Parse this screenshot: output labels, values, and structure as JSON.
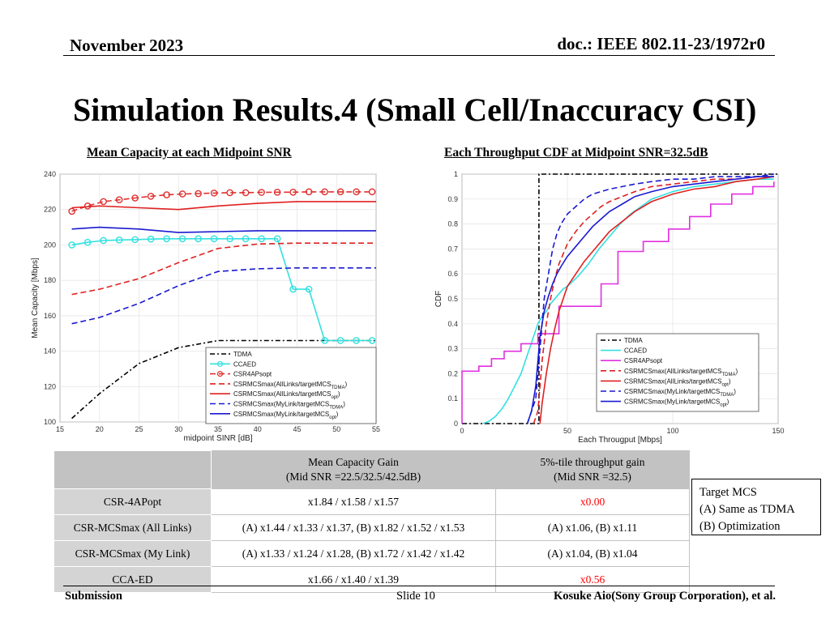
{
  "header": {
    "date": "November 2023",
    "doc": "doc.: IEEE 802.11-23/1972r0"
  },
  "title": "Simulation Results.4 (Small Cell/Inaccuracy CSI)",
  "left_subtitle": "Mean Capacity at each Midpoint SNR",
  "right_subtitle": "Each Throughput CDF at Midpoint SNR=32.5dB",
  "colors": {
    "tdma": "#000000",
    "ccaed": "#33e0e0",
    "csr4": "#e03030",
    "red": "#e02020",
    "blue": "#1a1ad0",
    "magenta": "#e030e0"
  },
  "chart_data": [
    {
      "type": "line",
      "title": "",
      "xlabel": "midpoint SINR [dB]",
      "ylabel": "Mean Capacity [Mbps]",
      "xlim": [
        15,
        55
      ],
      "ylim": [
        100,
        240
      ],
      "xticks": [
        "15",
        "20",
        "25",
        "30",
        "35",
        "40",
        "45",
        "50",
        "55"
      ],
      "yticks": [
        "100",
        "120",
        "140",
        "160",
        "180",
        "200",
        "220",
        "240"
      ],
      "legend_position": "bottom-right",
      "series": [
        {
          "name": "TDMA",
          "style": "dashdot",
          "color": "#000000",
          "x": [
            16.5,
            20,
            25,
            30,
            35,
            40,
            45,
            50,
            55
          ],
          "values": [
            102,
            116,
            133,
            142,
            146,
            146,
            146,
            146,
            146
          ]
        },
        {
          "name": "CCAED",
          "style": "solid-circle",
          "color": "#33e0e0",
          "x": [
            16.5,
            18.5,
            20.5,
            22.5,
            24.5,
            26.5,
            28.5,
            30.5,
            32.5,
            34.5,
            36.5,
            38.5,
            40.5,
            42.5,
            44.5,
            46.5,
            48.5,
            50.5,
            52.5,
            54.5
          ],
          "values": [
            200,
            201.5,
            202.5,
            202.8,
            203,
            203.3,
            203.5,
            203.5,
            203.5,
            203.5,
            203.5,
            203.5,
            203.5,
            203.5,
            175,
            175,
            146,
            146,
            146,
            146
          ]
        },
        {
          "name": "CSR4APsopt",
          "style": "dashed-circle",
          "color": "#e03030",
          "x": [
            16.5,
            18.5,
            20.5,
            22.5,
            24.5,
            26.5,
            28.5,
            30.5,
            32.5,
            34.5,
            36.5,
            38.5,
            40.5,
            42.5,
            44.5,
            46.5,
            48.5,
            50.5,
            52.5,
            54.5
          ],
          "values": [
            219,
            222,
            224.5,
            225.5,
            226.5,
            227.5,
            228.3,
            228.8,
            229,
            229.3,
            229.5,
            229.5,
            229.7,
            229.8,
            229.8,
            230,
            230,
            230,
            230,
            230
          ]
        },
        {
          "name": "CSRMCSmax(AllLinks/targetMCS_TDMA)",
          "style": "dashed",
          "color": "#e02020",
          "x": [
            16.5,
            20,
            25,
            30,
            35,
            40,
            45,
            50,
            55
          ],
          "values": [
            172,
            175,
            181,
            190,
            198,
            200.5,
            201,
            201,
            201
          ]
        },
        {
          "name": "CSRMCSmax(AllLinks/targetMCS_opt)",
          "style": "solid",
          "color": "#e02020",
          "x": [
            16.5,
            20,
            25,
            30,
            35,
            40,
            45,
            50,
            55
          ],
          "values": [
            221,
            222,
            221,
            220,
            222,
            223.5,
            224.5,
            224.5,
            224.5
          ]
        },
        {
          "name": "CSRMCSmax(MyLink/targetMCS_TDMA)",
          "style": "dashed",
          "color": "#1a1ad0",
          "x": [
            16.5,
            20,
            25,
            30,
            35,
            40,
            45,
            50,
            55
          ],
          "values": [
            155.5,
            159,
            167,
            177,
            185,
            186.5,
            187,
            187,
            187
          ]
        },
        {
          "name": "CSRMCSmax(MyLink/targetMCS_opt)",
          "style": "solid",
          "color": "#1a1ad0",
          "x": [
            16.5,
            20,
            25,
            30,
            35,
            40,
            45,
            50,
            55
          ],
          "values": [
            209,
            210,
            209,
            207,
            207.5,
            208,
            208,
            208,
            208
          ]
        }
      ],
      "legend": [
        {
          "label": "TDMA",
          "sub": ""
        },
        {
          "label": "CCAED",
          "sub": ""
        },
        {
          "label": "CSR4APsopt",
          "sub": ""
        },
        {
          "label": "CSRMCSmax(AllLinks/targetMCS",
          "sub": "TDMA",
          "tail": ")"
        },
        {
          "label": "CSRMCSmax(AllLinks/targetMCS",
          "sub": "opt",
          "tail": ")"
        },
        {
          "label": "CSRMCSmax(MyLink/targetMCS",
          "sub": "TDMA",
          "tail": ")"
        },
        {
          "label": "CSRMCSmax(MyLink/targetMCS",
          "sub": "opt",
          "tail": ")"
        }
      ]
    },
    {
      "type": "line",
      "title": "",
      "xlabel": "Each Througput [Mbps]",
      "ylabel": "CDF",
      "xlim": [
        0,
        150
      ],
      "ylim": [
        0,
        1
      ],
      "xticks": [
        "0",
        "50",
        "100",
        "150"
      ],
      "yticks": [
        "0",
        "0.1",
        "0.2",
        "0.3",
        "0.4",
        "0.5",
        "0.6",
        "0.7",
        "0.8",
        "0.9",
        "1"
      ],
      "legend_position": "bottom-right",
      "series": [
        {
          "name": "TDMA",
          "style": "dashdot",
          "color": "#000000",
          "x": [
            0,
            36.5,
            36.5,
            150
          ],
          "values": [
            0,
            0,
            1,
            1
          ]
        },
        {
          "name": "CCAED",
          "style": "solid",
          "color": "#33e0e0",
          "x": [
            10,
            13,
            16,
            19,
            22,
            25,
            28,
            30,
            32,
            34,
            36,
            38,
            40,
            42,
            44,
            46,
            48,
            50,
            55,
            60,
            65,
            70,
            75,
            80,
            85,
            90,
            100,
            110,
            120,
            130,
            140,
            148
          ],
          "values": [
            0,
            0.01,
            0.03,
            0.06,
            0.1,
            0.15,
            0.2,
            0.25,
            0.3,
            0.35,
            0.4,
            0.43,
            0.45,
            0.48,
            0.5,
            0.52,
            0.54,
            0.55,
            0.59,
            0.64,
            0.7,
            0.75,
            0.8,
            0.84,
            0.87,
            0.9,
            0.93,
            0.95,
            0.96,
            0.97,
            0.98,
            0.98
          ]
        },
        {
          "name": "CSR4APsopt",
          "style": "step",
          "color": "#e030e0",
          "x": [
            0,
            0,
            8,
            8,
            14,
            14,
            20,
            20,
            28,
            28,
            36,
            36,
            46,
            46,
            66,
            66,
            74,
            74,
            86,
            86,
            98,
            98,
            108,
            108,
            118,
            118,
            128,
            128,
            138,
            138,
            148,
            148
          ],
          "values": [
            0,
            0.21,
            0.21,
            0.23,
            0.23,
            0.26,
            0.26,
            0.29,
            0.29,
            0.32,
            0.32,
            0.36,
            0.36,
            0.47,
            0.47,
            0.56,
            0.56,
            0.69,
            0.69,
            0.73,
            0.73,
            0.78,
            0.78,
            0.83,
            0.83,
            0.88,
            0.88,
            0.92,
            0.92,
            0.95,
            0.95,
            0.97
          ]
        },
        {
          "name": "CSRMCSmax(AllLinks/targetMCS_TDMA)",
          "style": "dashed",
          "color": "#e02020",
          "x": [
            34,
            36,
            38,
            40,
            42,
            44,
            46,
            48,
            50,
            54,
            58,
            62,
            66,
            70,
            76,
            82,
            90,
            100,
            110,
            120,
            130,
            140,
            148
          ],
          "values": [
            0,
            0.05,
            0.25,
            0.4,
            0.5,
            0.58,
            0.64,
            0.68,
            0.72,
            0.77,
            0.81,
            0.84,
            0.87,
            0.89,
            0.91,
            0.93,
            0.95,
            0.96,
            0.97,
            0.98,
            0.98,
            0.99,
            0.99
          ]
        },
        {
          "name": "CSRMCSmax(AllLinks/targetMCS_opt)",
          "style": "solid",
          "color": "#e02020",
          "x": [
            37,
            38,
            40,
            42,
            44,
            46,
            48,
            50,
            54,
            58,
            62,
            66,
            70,
            76,
            82,
            90,
            100,
            110,
            120,
            130,
            140,
            148
          ],
          "values": [
            0,
            0.08,
            0.2,
            0.3,
            0.38,
            0.45,
            0.5,
            0.55,
            0.6,
            0.65,
            0.69,
            0.73,
            0.77,
            0.81,
            0.85,
            0.89,
            0.92,
            0.94,
            0.95,
            0.97,
            0.98,
            0.99
          ]
        },
        {
          "name": "CSRMCSmax(MyLink/targetMCS_TDMA)",
          "style": "dashed",
          "color": "#1a1ad0",
          "x": [
            31,
            33,
            35,
            37,
            39,
            41,
            43,
            45,
            47,
            50,
            54,
            58,
            62,
            66,
            70,
            76,
            82,
            90,
            100,
            110,
            120,
            130,
            140,
            148
          ],
          "values": [
            0,
            0.05,
            0.1,
            0.3,
            0.5,
            0.6,
            0.7,
            0.76,
            0.8,
            0.84,
            0.87,
            0.9,
            0.92,
            0.93,
            0.94,
            0.95,
            0.96,
            0.97,
            0.98,
            0.98,
            0.99,
            0.99,
            0.99,
            1
          ]
        },
        {
          "name": "CSRMCSmax(MyLink/targetMCS_opt)",
          "style": "solid",
          "color": "#1a1ad0",
          "x": [
            31,
            33,
            35,
            37,
            39,
            41,
            43,
            45,
            47,
            50,
            54,
            58,
            62,
            66,
            70,
            76,
            82,
            90,
            100,
            110,
            120,
            130,
            140,
            148
          ],
          "values": [
            0,
            0.05,
            0.15,
            0.35,
            0.45,
            0.51,
            0.56,
            0.6,
            0.63,
            0.67,
            0.71,
            0.75,
            0.79,
            0.82,
            0.85,
            0.88,
            0.91,
            0.93,
            0.95,
            0.96,
            0.97,
            0.98,
            0.99,
            0.99
          ]
        }
      ],
      "legend": [
        {
          "label": "TDMA",
          "sub": ""
        },
        {
          "label": "CCAED",
          "sub": ""
        },
        {
          "label": "CSR4APsopt",
          "sub": ""
        },
        {
          "label": "CSRMCSmax(AllLinks/targetMCS",
          "sub": "TDMA",
          "tail": ")"
        },
        {
          "label": "CSRMCSmax(AllLinks/targetMCS",
          "sub": "opt",
          "tail": ")"
        },
        {
          "label": "CSRMCSmax(MyLink/targetMCS",
          "sub": "TDMA",
          "tail": ")"
        },
        {
          "label": "CSRMCSmax(MyLink/targetMCS",
          "sub": "opt",
          "tail": ")"
        }
      ]
    },
    {
      "type": "table",
      "headers": [
        "",
        "Mean Capacity Gain",
        "5%-tile throughput gain"
      ],
      "headers_line2": [
        "",
        "(Mid SNR =22.5/32.5/42.5dB)",
        "(Mid SNR =32.5)"
      ],
      "rows": [
        [
          "CSR-4APopt",
          "x1.84 / x1.58 / x1.57",
          "x0.00"
        ],
        [
          "CSR-MCSmax (All Links)",
          "(A) x1.44 / x1.33 / x1.37,  (B) x1.82 / x1.52 / x1.53",
          "(A) x1.06,  (B) x1.11"
        ],
        [
          "CSR-MCSmax (My Link)",
          "(A) x1.33 / x1.24 / x1.28,  (B) x1.72 / x1.42 / x1.42",
          "(A) x1.04,  (B) x1.04"
        ],
        [
          "CCA-ED",
          "x1.66 / x1.40 / x1.39",
          "x0.56"
        ]
      ]
    }
  ],
  "note": {
    "line1": "Target MCS",
    "line2": "(A)  Same as TDMA",
    "line3": "(B)  Optimization"
  },
  "footer": {
    "left": "Submission",
    "mid": "Slide 10",
    "right": "Kosuke Aio(Sony Group Corporation), et al."
  }
}
